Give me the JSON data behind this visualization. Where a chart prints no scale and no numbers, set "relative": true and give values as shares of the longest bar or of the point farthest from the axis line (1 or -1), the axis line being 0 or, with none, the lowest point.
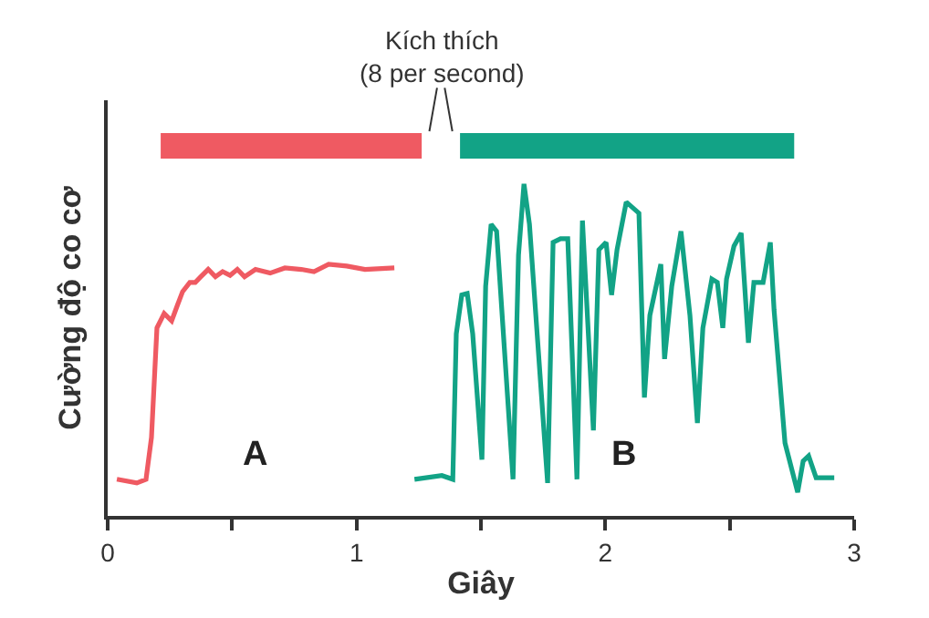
{
  "chart_data": {
    "type": "line",
    "relative": true,
    "xlabel": "Giây",
    "ylabel": "Cường độ co cơ",
    "xlim": [
      0,
      3
    ],
    "xticks": [
      0,
      {
        "value": 0.5,
        "label": null
      },
      1,
      {
        "value": 1.5,
        "label": null
      },
      2,
      {
        "value": 2.5,
        "label": null
      },
      3
    ],
    "grid": false,
    "legend": false,
    "marker": "none",
    "line_style": "solid",
    "annotations": [
      "Kích thích\n(8 per second)"
    ],
    "series": [
      {
        "name": "A",
        "color": "#ef5a62",
        "x": [
          0.037,
          0.117,
          0.154,
          0.176,
          0.198,
          0.227,
          0.257,
          0.279,
          0.301,
          0.33,
          0.352,
          0.374,
          0.404,
          0.433,
          0.462,
          0.492,
          0.521,
          0.55,
          0.594,
          0.653,
          0.712,
          0.778,
          0.829,
          0.888,
          0.961,
          1.034,
          1.152
        ],
        "values": [
          0.099,
          0.089,
          0.099,
          0.212,
          0.508,
          0.547,
          0.527,
          0.567,
          0.606,
          0.631,
          0.631,
          0.646,
          0.666,
          0.646,
          0.66,
          0.65,
          0.666,
          0.646,
          0.666,
          0.656,
          0.67,
          0.666,
          0.66,
          0.68,
          0.675,
          0.666,
          0.67
        ]
      },
      {
        "name": "B",
        "color": "#12a386",
        "x": [
          1.233,
          1.343,
          1.387,
          1.401,
          1.423,
          1.445,
          1.467,
          1.504,
          1.519,
          1.541,
          1.563,
          1.629,
          1.651,
          1.673,
          1.695,
          1.768,
          1.79,
          1.82,
          1.849,
          1.886,
          1.908,
          1.952,
          1.974,
          2.003,
          2.025,
          2.047,
          2.084,
          2.135,
          2.157,
          2.179,
          2.223,
          2.238,
          2.267,
          2.304,
          2.34,
          2.37,
          2.392,
          2.428,
          2.45,
          2.472,
          2.487,
          2.517,
          2.546,
          2.575,
          2.597,
          2.634,
          2.663,
          2.678,
          2.722,
          2.773,
          2.795,
          2.817,
          2.847,
          2.92
        ],
        "values": [
          0.099,
          0.109,
          0.099,
          0.492,
          0.597,
          0.601,
          0.492,
          0.152,
          0.621,
          0.788,
          0.769,
          0.099,
          0.705,
          0.897,
          0.788,
          0.089,
          0.739,
          0.749,
          0.749,
          0.099,
          0.798,
          0.231,
          0.719,
          0.739,
          0.597,
          0.719,
          0.848,
          0.818,
          0.32,
          0.542,
          0.68,
          0.424,
          0.621,
          0.769,
          0.542,
          0.251,
          0.508,
          0.64,
          0.631,
          0.508,
          0.64,
          0.729,
          0.764,
          0.468,
          0.631,
          0.631,
          0.739,
          0.557,
          0.197,
          0.064,
          0.148,
          0.162,
          0.103,
          0.103
        ]
      },
      {
        "color": "#ef5a62",
        "x": [
          0.213,
          1.262
        ],
        "values": [
          1,
          1
        ]
      },
      {
        "color": "#12a386",
        "x": [
          1.416,
          2.759
        ],
        "values": [
          1,
          1
        ]
      }
    ]
  }
}
